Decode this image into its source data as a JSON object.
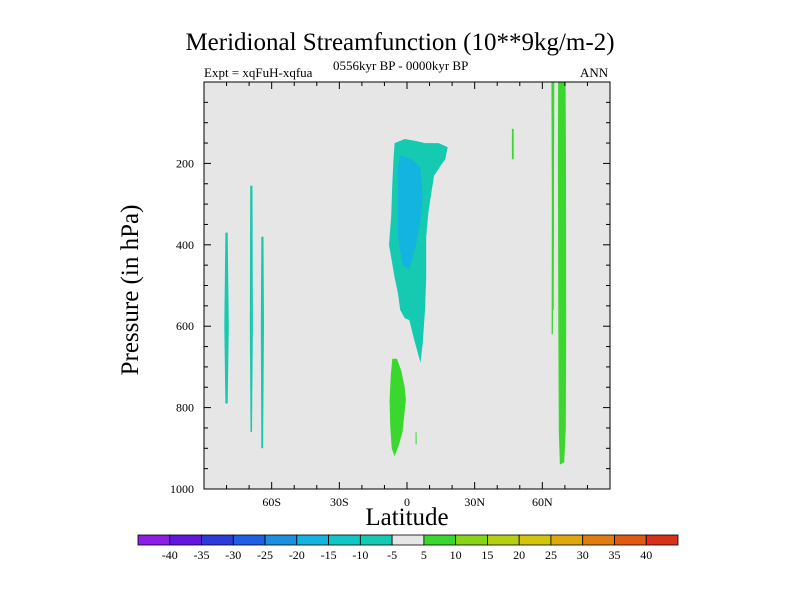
{
  "chart_data": {
    "type": "contour",
    "title": "Meridional Streamfunction (10**9kg/m-2)",
    "subtitle_left": "Expt = xqFuH-xqfua",
    "subtitle_center": "0556kyr BP - 0000kyr BP",
    "subtitle_right": "ANN",
    "xlabel": "Latitude",
    "ylabel": "Pressure (in hPa)",
    "xlim": [
      -90,
      90
    ],
    "ylim": [
      1000,
      0
    ],
    "x_ticks": [
      {
        "value": -60,
        "label": "60S"
      },
      {
        "value": -30,
        "label": "30S"
      },
      {
        "value": 0,
        "label": "0"
      },
      {
        "value": 30,
        "label": "30N"
      },
      {
        "value": 60,
        "label": "60N"
      }
    ],
    "y_ticks": [
      {
        "value": 200,
        "label": "200"
      },
      {
        "value": 400,
        "label": "400"
      },
      {
        "value": 600,
        "label": "600"
      },
      {
        "value": 800,
        "label": "800"
      },
      {
        "value": 1000,
        "label": "1000"
      }
    ],
    "background_color": "#e6e6e6",
    "colorbar": {
      "labels": [
        "-40",
        "-35",
        "-30",
        "-25",
        "-20",
        "-15",
        "-10",
        "-5",
        "5",
        "10",
        "15",
        "20",
        "25",
        "30",
        "35",
        "40"
      ],
      "colors": [
        "#8c1ee6",
        "#6416e0",
        "#2d3bd9",
        "#1f5fe6",
        "#1c8fe0",
        "#13b4e0",
        "#10c7c7",
        "#16c9b1",
        "#e6e6e6",
        "#3ad82e",
        "#86d617",
        "#b4d010",
        "#d4c40c",
        "#e0a80c",
        "#e07c10",
        "#e05a12",
        "#d9301a"
      ]
    },
    "regions": [
      {
        "name": "cyan-strip-1",
        "level": -5,
        "color": "#16c9b1",
        "points": [
          [
            -80.5,
            370
          ],
          [
            -79.5,
            370
          ],
          [
            -79,
            600
          ],
          [
            -79.5,
            790
          ],
          [
            -80.5,
            790
          ],
          [
            -81,
            600
          ]
        ]
      },
      {
        "name": "cyan-strip-2",
        "level": -5,
        "color": "#16c9b1",
        "points": [
          [
            -69.5,
            255
          ],
          [
            -68.5,
            255
          ],
          [
            -68.3,
            600
          ],
          [
            -68.7,
            860
          ],
          [
            -69.4,
            860
          ],
          [
            -69.7,
            600
          ]
        ]
      },
      {
        "name": "cyan-strip-3",
        "level": -5,
        "color": "#16c9b1",
        "points": [
          [
            -64.6,
            380
          ],
          [
            -63.6,
            380
          ],
          [
            -63.4,
            600
          ],
          [
            -63.8,
            900
          ],
          [
            -64.6,
            900
          ],
          [
            -64.8,
            600
          ]
        ]
      },
      {
        "name": "equatorial-cyan",
        "level": -5,
        "color": "#16c9b1",
        "points": [
          [
            -5.5,
            150
          ],
          [
            -1,
            140
          ],
          [
            4,
            145
          ],
          [
            8,
            150
          ],
          [
            14,
            150
          ],
          [
            18,
            160
          ],
          [
            17,
            190
          ],
          [
            15,
            205
          ],
          [
            12,
            230
          ],
          [
            11,
            265
          ],
          [
            9.5,
            320
          ],
          [
            8.5,
            380
          ],
          [
            8.5,
            480
          ],
          [
            8,
            560
          ],
          [
            7,
            640
          ],
          [
            6,
            690
          ],
          [
            3,
            630
          ],
          [
            1,
            585
          ],
          [
            -1,
            580
          ],
          [
            -3,
            560
          ],
          [
            -4,
            520
          ],
          [
            -5.5,
            480
          ],
          [
            -8,
            400
          ],
          [
            -7,
            330
          ],
          [
            -6.5,
            250
          ],
          [
            -6,
            190
          ]
        ]
      },
      {
        "name": "equatorial-core",
        "level": -10,
        "color": "#13b4e0",
        "points": [
          [
            -3,
            180
          ],
          [
            2,
            190
          ],
          [
            6,
            210
          ],
          [
            7,
            280
          ],
          [
            6,
            340
          ],
          [
            4,
            400
          ],
          [
            1,
            460
          ],
          [
            -2,
            450
          ],
          [
            -4,
            380
          ],
          [
            -4,
            280
          ],
          [
            -4,
            210
          ]
        ]
      },
      {
        "name": "green-patch",
        "level": 5,
        "color": "#3ad82e",
        "points": [
          [
            -6.5,
            680
          ],
          [
            -4.5,
            680
          ],
          [
            -2.5,
            710
          ],
          [
            -1,
            750
          ],
          [
            -0.5,
            780
          ],
          [
            -2,
            860
          ],
          [
            -3.5,
            890
          ],
          [
            -5.5,
            920
          ],
          [
            -6.8,
            900
          ],
          [
            -7.5,
            840
          ],
          [
            -7.7,
            780
          ],
          [
            -7.2,
            720
          ]
        ]
      },
      {
        "name": "green-speck-1",
        "level": 5,
        "color": "#3ad82e",
        "points": [
          [
            3.8,
            860
          ],
          [
            4.2,
            860
          ],
          [
            4.3,
            890
          ],
          [
            3.8,
            890
          ]
        ]
      },
      {
        "name": "green-speck-2",
        "level": 5,
        "color": "#3ad82e",
        "points": [
          [
            46.5,
            115
          ],
          [
            47.3,
            115
          ],
          [
            47.3,
            190
          ],
          [
            46.5,
            190
          ]
        ]
      },
      {
        "name": "northern-thin-strip",
        "level": 5,
        "color": "#3ad82e",
        "points": [
          [
            64,
            0
          ],
          [
            65.3,
            0
          ],
          [
            65.1,
            300
          ],
          [
            64.7,
            620
          ],
          [
            64.1,
            620
          ],
          [
            64.2,
            300
          ]
        ]
      },
      {
        "name": "northern-cyan-edge",
        "level": -5,
        "color": "#16c9b1",
        "points": [
          [
            64.9,
            80
          ],
          [
            65.2,
            80
          ],
          [
            65.1,
            560
          ],
          [
            64.8,
            560
          ]
        ]
      },
      {
        "name": "northern-green-band",
        "level": 5,
        "color": "#3ad82e",
        "points": [
          [
            67,
            0
          ],
          [
            70.3,
            0
          ],
          [
            70.5,
            200
          ],
          [
            70.6,
            600
          ],
          [
            70.4,
            850
          ],
          [
            69.7,
            935
          ],
          [
            67.8,
            940
          ],
          [
            67.3,
            860
          ],
          [
            67.1,
            600
          ],
          [
            66.9,
            200
          ]
        ]
      }
    ]
  }
}
